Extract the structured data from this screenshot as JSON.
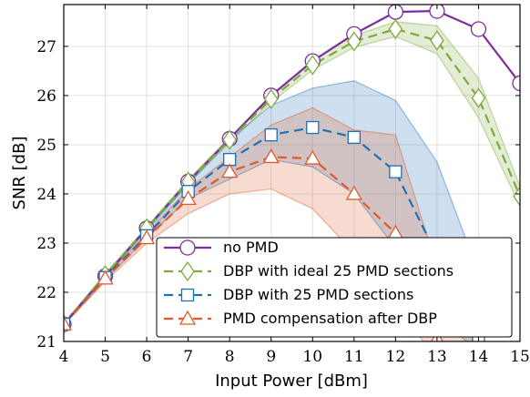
{
  "chart_data": {
    "type": "line",
    "xlabel": "Input Power [dBm]",
    "ylabel": "SNR [dB]",
    "xlim": [
      4,
      15
    ],
    "ylim": [
      21,
      27.85
    ],
    "xticks": [
      4,
      5,
      6,
      7,
      8,
      9,
      10,
      11,
      12,
      13,
      14,
      15
    ],
    "yticks": [
      21,
      22,
      23,
      24,
      25,
      26,
      27
    ],
    "grid": true,
    "legend_position": "bottom-right",
    "series": [
      {
        "name": "no PMD",
        "color": "#7B2D9E",
        "dash": "solid",
        "marker": "circle",
        "x": [
          4,
          5,
          6,
          7,
          8,
          9,
          10,
          11,
          12,
          13,
          14,
          15
        ],
        "y": [
          21.35,
          22.33,
          23.3,
          24.25,
          25.12,
          26.0,
          26.7,
          27.25,
          27.7,
          27.72,
          27.35,
          26.25
        ]
      },
      {
        "name": "DBP with ideal 25 PMD sections",
        "color": "#7EAA3A",
        "dash": "dashed",
        "marker": "diamond",
        "x": [
          4,
          5,
          6,
          7,
          8,
          9,
          10,
          11,
          12,
          13,
          14,
          15
        ],
        "y": [
          21.35,
          22.35,
          23.3,
          24.25,
          25.1,
          25.93,
          26.62,
          27.1,
          27.35,
          27.12,
          25.95,
          23.95
        ],
        "band_lower": [
          21.33,
          22.32,
          23.27,
          24.2,
          25.05,
          25.86,
          26.52,
          26.98,
          27.2,
          26.85,
          25.55,
          23.75
        ],
        "band_upper": [
          21.37,
          22.38,
          23.33,
          24.3,
          25.15,
          26.0,
          26.72,
          27.22,
          27.5,
          27.42,
          26.35,
          24.15
        ]
      },
      {
        "name": "DBP with 25 PMD sections",
        "color": "#1F6FB4",
        "dash": "dashed",
        "marker": "square",
        "x": [
          4,
          5,
          6,
          7,
          8,
          9,
          10,
          11,
          12,
          13,
          14
        ],
        "y": [
          21.35,
          22.3,
          23.15,
          24.05,
          24.7,
          25.2,
          25.35,
          25.15,
          24.45,
          22.75,
          21.0
        ],
        "band_lower": [
          21.33,
          22.25,
          23.1,
          23.9,
          24.3,
          24.7,
          24.55,
          24.0,
          22.9,
          21.5,
          20.8
        ],
        "band_upper": [
          21.37,
          22.35,
          23.25,
          24.2,
          25.1,
          25.8,
          26.15,
          26.3,
          25.9,
          24.65,
          22.4
        ]
      },
      {
        "name": "PMD compensation after DBP",
        "color": "#E0592B",
        "dash": "dashed",
        "marker": "triangle",
        "x": [
          4,
          5,
          6,
          7,
          8,
          9,
          10,
          11,
          12,
          13,
          14
        ],
        "y": [
          21.35,
          22.28,
          23.1,
          23.9,
          24.45,
          24.75,
          24.72,
          24.0,
          23.2,
          21.05,
          20.6
        ],
        "band_lower": [
          21.33,
          22.22,
          23.0,
          23.6,
          24.0,
          24.1,
          23.7,
          22.8,
          21.8,
          20.6,
          20.4
        ],
        "band_upper": [
          21.37,
          22.32,
          23.2,
          24.1,
          24.75,
          25.4,
          25.75,
          25.3,
          25.2,
          22.5,
          21.0
        ]
      }
    ]
  }
}
